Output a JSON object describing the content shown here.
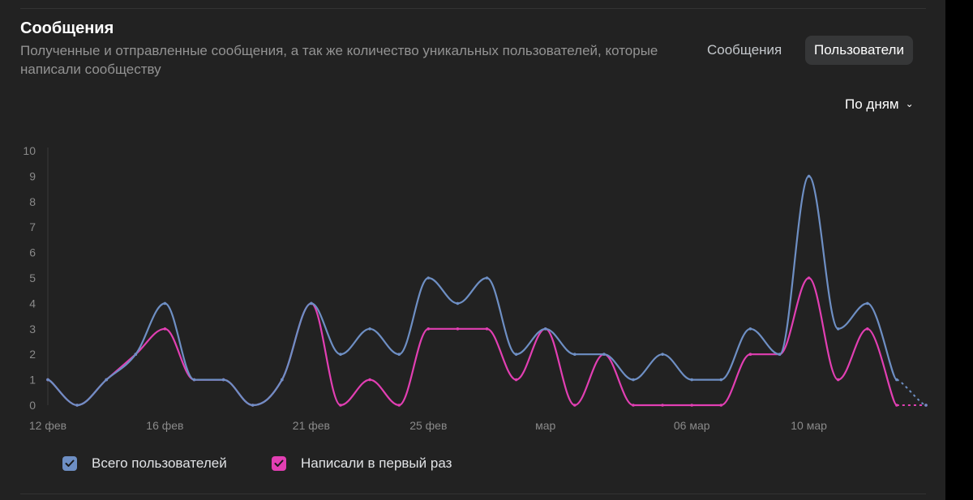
{
  "header": {
    "title": "Сообщения",
    "subtitle": "Полученные и отправленные сообщения, а так же количество уникальных пользователей, которые написали сообществу"
  },
  "tabs": {
    "messages_label": "Сообщения",
    "users_label": "Пользователи",
    "active": "Пользователи"
  },
  "period": {
    "label": "По дням"
  },
  "colors": {
    "series_total": "#6e8fc4",
    "series_first": "#e23fb3",
    "background": "#222222"
  },
  "chart_data": {
    "type": "line",
    "ylim": [
      0,
      10
    ],
    "y_ticks": [
      "0",
      "1",
      "2",
      "3",
      "4",
      "5",
      "6",
      "7",
      "8",
      "9",
      "10"
    ],
    "x_tick_labels": [
      "12 фев",
      "16 фев",
      "21 фев",
      "25 фев",
      "мар",
      "06 мар",
      "10 мар"
    ],
    "series": [
      {
        "name": "Всего пользователей",
        "color": "#6e8fc4",
        "values": [
          1,
          0,
          1,
          2,
          4,
          1,
          1,
          0,
          1,
          4,
          2,
          3,
          2,
          5,
          4,
          5,
          2,
          3,
          2,
          2,
          1,
          2,
          1,
          1,
          3,
          2,
          9,
          3,
          4,
          1,
          0
        ],
        "dashed_last": 1
      },
      {
        "name": "Написали в первый раз",
        "color": "#e23fb3",
        "values": [
          1,
          0,
          1,
          2,
          3,
          1,
          1,
          0,
          1,
          4,
          0,
          1,
          0,
          3,
          3,
          3,
          1,
          3,
          0,
          2,
          0,
          0,
          0,
          0,
          2,
          2,
          5,
          1,
          3,
          0,
          0
        ],
        "dashed_last": 1
      }
    ],
    "grid": false,
    "legend_position": "bottom-left"
  },
  "legend": {
    "items": [
      {
        "label": "Всего пользователей",
        "checked": true
      },
      {
        "label": "Написали в первый раз",
        "checked": true
      }
    ]
  }
}
